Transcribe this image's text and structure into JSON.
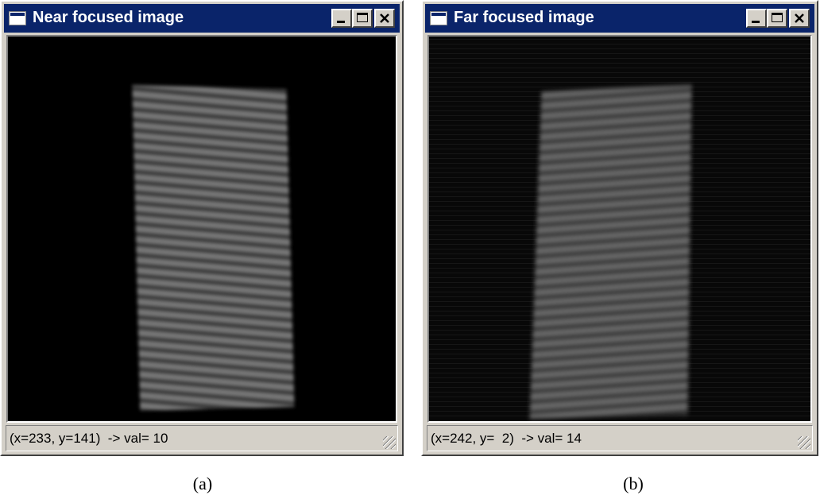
{
  "windows": [
    {
      "title": "Near focused image",
      "status": "(x=233, y=141)  -> val= 10",
      "caption": "(a)"
    },
    {
      "title": "Far focused image",
      "status": "(x=242, y=  2)  -> val= 14",
      "caption": "(b)"
    }
  ]
}
